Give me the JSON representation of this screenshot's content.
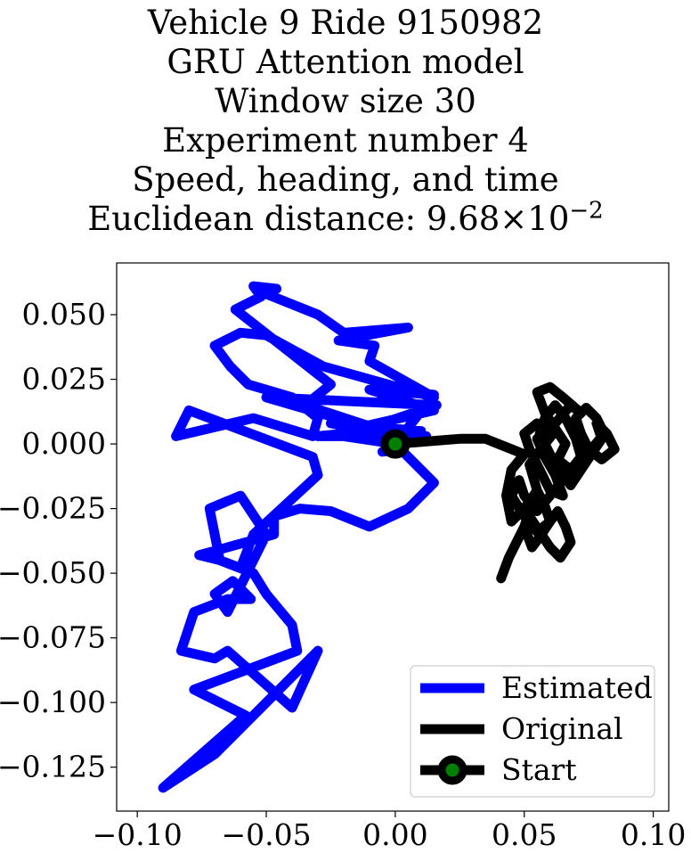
{
  "chart_data": {
    "type": "line",
    "title_lines": [
      "Vehicle 9 Ride 9150982",
      "GRU Attention model",
      "Window size 30",
      "Experiment number 4",
      "Speed, heading, and time"
    ],
    "title_metric": {
      "label": "Euclidean distance: ",
      "mantissa": "9.68",
      "times": "×",
      "base": "10",
      "exponent": "−2"
    },
    "xlim": [
      -0.108,
      0.106
    ],
    "ylim": [
      -0.142,
      0.07
    ],
    "xticks": [
      -0.1,
      -0.05,
      0.0,
      0.05,
      0.1
    ],
    "xtick_labels": [
      "−0.10",
      "−0.05",
      "0.00",
      "0.05",
      "0.10"
    ],
    "yticks": [
      0.05,
      0.025,
      0.0,
      -0.025,
      -0.05,
      -0.075,
      -0.1,
      -0.125
    ],
    "ytick_labels": [
      "0.050",
      "0.025",
      "0.000",
      "−0.025",
      "−0.050",
      "−0.075",
      "−0.100",
      "−0.125"
    ],
    "grid": false,
    "legend_position": "lower-right",
    "series": [
      {
        "name": "Estimated",
        "color": "#0000ff",
        "x": [
          0.0,
          0.015,
          -0.01,
          0.015,
          -0.02,
          0.012,
          -0.03,
          -0.01,
          -0.025,
          0.01,
          -0.005,
          0.003,
          0.0,
          -0.02,
          0.016,
          -0.05,
          0.005,
          -0.035,
          -0.025,
          -0.062,
          -0.052,
          -0.055,
          -0.046,
          -0.05,
          -0.03,
          -0.02,
          0.005,
          -0.022,
          -0.008,
          -0.01,
          0.015,
          -0.028,
          -0.05,
          -0.06,
          -0.07,
          -0.064,
          -0.057,
          -0.04,
          -0.03,
          -0.032,
          -0.055,
          -0.085,
          -0.08,
          -0.032,
          -0.03,
          -0.055,
          -0.06,
          -0.068,
          -0.072,
          -0.06,
          -0.05,
          -0.065,
          -0.07,
          -0.063,
          -0.056,
          -0.065,
          -0.078,
          -0.083,
          -0.07,
          -0.065,
          -0.04,
          -0.03,
          -0.05,
          -0.07,
          -0.09,
          -0.058,
          -0.078,
          -0.038,
          -0.04,
          -0.05,
          -0.055,
          -0.068,
          -0.076,
          -0.047,
          -0.047,
          -0.037,
          -0.025,
          -0.01,
          0.005,
          0.015,
          0.0
        ],
        "y": [
          0.0,
          0.019,
          0.021,
          0.013,
          0.005,
          0.003,
          0.003,
          0.005,
          0.008,
          0.005,
          -0.003,
          -0.002,
          0.0,
          0.003,
          0.015,
          0.018,
          0.002,
          0.015,
          0.023,
          0.052,
          0.057,
          0.061,
          0.06,
          0.058,
          0.05,
          0.043,
          0.045,
          0.04,
          0.038,
          0.032,
          0.018,
          0.03,
          0.042,
          0.043,
          0.038,
          0.03,
          0.023,
          0.018,
          0.01,
          0.003,
          0.01,
          0.003,
          0.013,
          -0.005,
          -0.012,
          -0.035,
          -0.048,
          -0.045,
          -0.025,
          -0.02,
          -0.035,
          -0.065,
          -0.058,
          -0.053,
          -0.06,
          -0.06,
          -0.065,
          -0.08,
          -0.083,
          -0.08,
          -0.102,
          -0.08,
          -0.1,
          -0.12,
          -0.133,
          -0.105,
          -0.095,
          -0.08,
          -0.07,
          -0.058,
          -0.05,
          -0.045,
          -0.043,
          -0.035,
          -0.028,
          -0.025,
          -0.026,
          -0.032,
          -0.025,
          -0.015,
          0.0
        ]
      },
      {
        "name": "Original",
        "color": "#000000",
        "x": [
          0.0,
          0.025,
          0.035,
          0.04,
          0.045,
          0.05,
          0.045,
          0.043,
          0.045,
          0.05,
          0.055,
          0.052,
          0.058,
          0.062,
          0.055,
          0.05,
          0.052,
          0.056,
          0.06,
          0.065,
          0.062,
          0.058,
          0.055,
          0.062,
          0.068,
          0.072,
          0.065,
          0.06,
          0.055,
          0.058,
          0.062,
          0.066,
          0.063,
          0.068,
          0.072,
          0.07,
          0.066,
          0.062,
          0.058,
          0.056,
          0.06,
          0.064,
          0.068,
          0.072,
          0.076,
          0.08,
          0.078,
          0.082,
          0.085,
          0.08,
          0.075,
          0.072,
          0.07,
          0.074,
          0.078,
          0.081,
          0.076,
          0.07,
          0.065,
          0.06,
          0.055,
          0.05,
          0.048,
          0.045,
          0.05,
          0.055,
          0.06,
          0.058,
          0.055,
          0.052,
          0.05,
          0.053,
          0.056,
          0.06,
          0.063,
          0.066,
          0.068,
          0.064,
          0.06,
          0.056,
          0.052,
          0.048,
          0.044,
          0.041
        ],
        "y": [
          0.0,
          0.002,
          0.002,
          0.0,
          -0.002,
          -0.004,
          -0.01,
          -0.02,
          -0.03,
          -0.025,
          -0.018,
          -0.008,
          0.0,
          0.005,
          0.008,
          0.004,
          -0.002,
          -0.01,
          -0.018,
          -0.02,
          -0.012,
          -0.005,
          0.002,
          0.008,
          0.015,
          0.012,
          0.018,
          0.022,
          0.02,
          0.012,
          0.006,
          0.0,
          -0.006,
          -0.01,
          -0.005,
          0.002,
          0.01,
          0.015,
          0.01,
          0.004,
          -0.004,
          -0.01,
          -0.016,
          -0.01,
          -0.004,
          0.002,
          0.008,
          0.004,
          -0.002,
          -0.006,
          -0.002,
          0.004,
          0.01,
          0.014,
          0.01,
          0.004,
          -0.002,
          -0.008,
          -0.014,
          -0.02,
          -0.026,
          -0.02,
          -0.014,
          -0.02,
          -0.028,
          -0.034,
          -0.03,
          -0.024,
          -0.018,
          -0.026,
          -0.032,
          -0.04,
          -0.036,
          -0.03,
          -0.026,
          -0.032,
          -0.038,
          -0.044,
          -0.04,
          -0.034,
          -0.028,
          -0.036,
          -0.044,
          -0.052
        ]
      }
    ],
    "markers": [
      {
        "name": "Start",
        "x": 0.0,
        "y": 0.0,
        "edge_color": "#000000",
        "face_color": "#008000"
      }
    ]
  }
}
